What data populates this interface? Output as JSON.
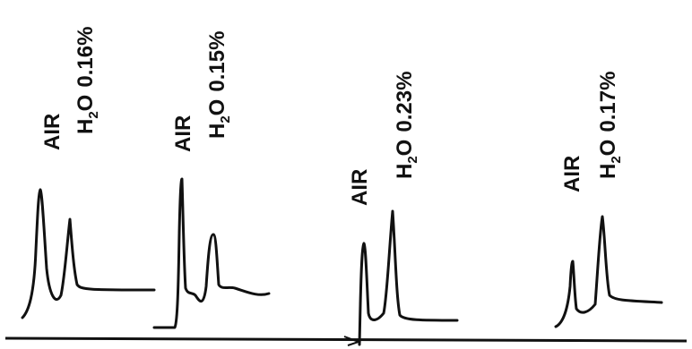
{
  "chart_data": [
    {
      "type": "line",
      "labels": {
        "air": "AIR",
        "h2o_main": "H",
        "h2o_sub": "2",
        "h2o_tail": "O",
        "value": "0.16%"
      },
      "series": [
        {
          "peaks": [
            {
              "label": "AIR"
            },
            {
              "label": "H2O"
            }
          ],
          "h2o_percent": 0.16
        }
      ]
    },
    {
      "type": "line",
      "labels": {
        "air": "AIR",
        "h2o_main": "H",
        "h2o_sub": "2",
        "h2o_tail": "O",
        "value": "0.15%"
      },
      "series": [
        {
          "peaks": [
            {
              "label": "AIR"
            },
            {
              "label": "H2O"
            }
          ],
          "h2o_percent": 0.15
        }
      ]
    },
    {
      "type": "line",
      "labels": {
        "air": "AIR",
        "h2o_main": "H",
        "h2o_sub": "2",
        "h2o_tail": "O",
        "value": "0.23%"
      },
      "series": [
        {
          "peaks": [
            {
              "label": "AIR"
            },
            {
              "label": "H2O"
            }
          ],
          "h2o_percent": 0.23
        }
      ]
    },
    {
      "type": "line",
      "labels": {
        "air": "AIR",
        "h2o_main": "H",
        "h2o_sub": "2",
        "h2o_tail": "O",
        "value": "0.17%"
      },
      "series": [
        {
          "peaks": [
            {
              "label": "AIR"
            },
            {
              "label": "H2O"
            }
          ],
          "h2o_percent": 0.17
        }
      ]
    }
  ]
}
